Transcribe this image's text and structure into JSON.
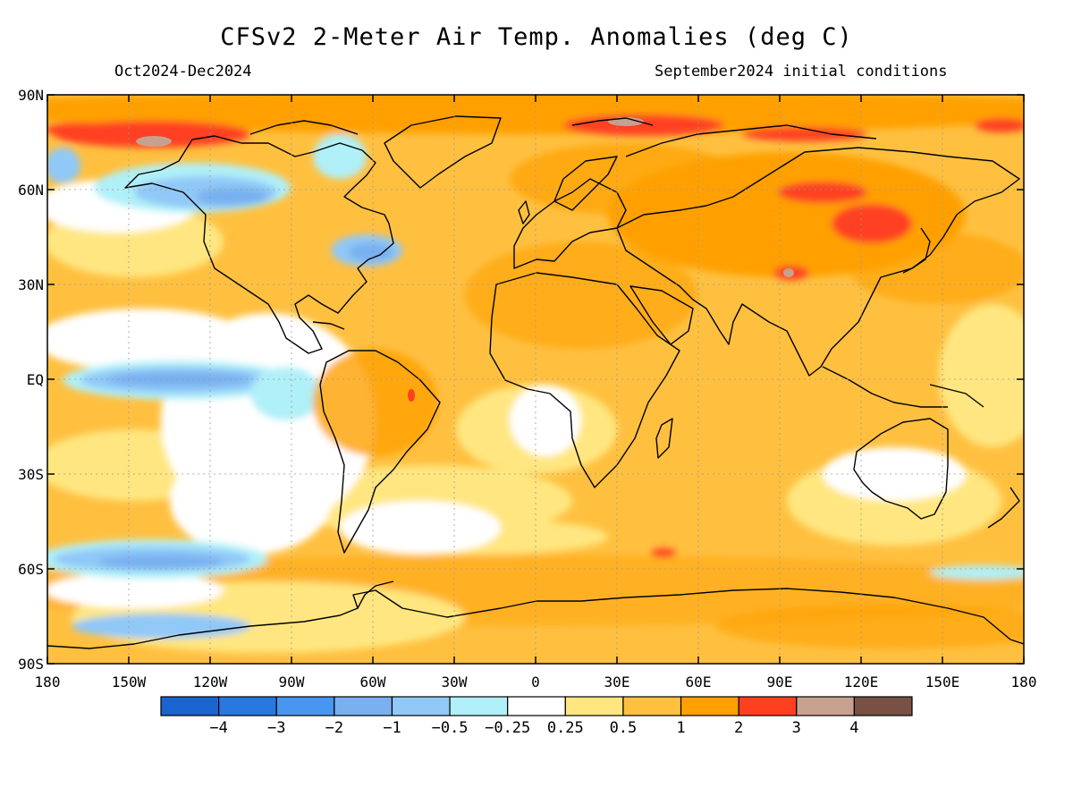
{
  "title": "CFSv2 2-Meter Air Temp. Anomalies (deg C)",
  "period": "Oct2024-Dec2024",
  "initial_conditions": "September2024 initial conditions",
  "map": {
    "lat_ticks": [
      "90N",
      "60N",
      "30N",
      "EQ",
      "30S",
      "60S",
      "90S"
    ],
    "lon_ticks": [
      "180",
      "150W",
      "120W",
      "90W",
      "60W",
      "30W",
      "0",
      "30E",
      "60E",
      "90E",
      "120E",
      "150E",
      "180"
    ],
    "colors": {
      "warm_0_25": "#ffe680",
      "warm_0_5": "#ffc040",
      "warm_1": "#ffa000",
      "warm_2": "#ff4020",
      "warm_3": "#c8a090",
      "warm_4": "#785044",
      "cool_0_25": "#b0f0f8",
      "cool_0_5": "#90c8f8",
      "cool_1": "#78b0f0",
      "cool_2": "#4896f0",
      "cool_3": "#2878e0",
      "cool_4": "#1a64d0"
    }
  },
  "legend": {
    "colors": [
      "#1a64d0",
      "#2878e0",
      "#4896f0",
      "#78b0f0",
      "#90c8f8",
      "#b0f0f8",
      "#ffffff",
      "#ffe680",
      "#ffc040",
      "#ffa000",
      "#ff4020",
      "#c8a090",
      "#785044"
    ],
    "labels": [
      "−4",
      "−3",
      "−2",
      "−1",
      "−0.5",
      "−0.25",
      "0.25",
      "0.5",
      "1",
      "2",
      "3",
      "4"
    ]
  }
}
